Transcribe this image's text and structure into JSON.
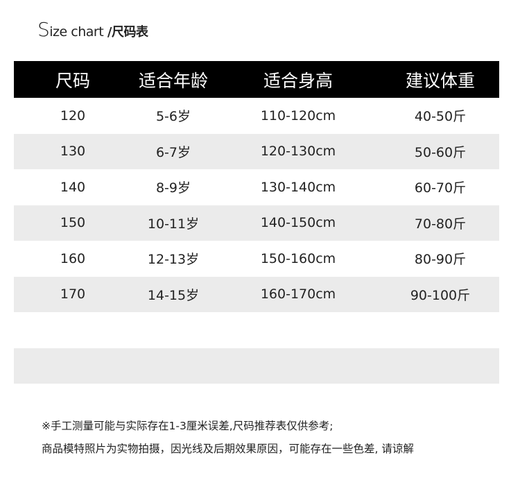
{
  "title": {
    "prefix_big": "S",
    "prefix_rest": "ize chart",
    "cn": " /尺码表"
  },
  "table": {
    "headers": [
      "尺码",
      "适合年龄",
      "适合身高",
      "建议体重"
    ],
    "rows": [
      [
        "120",
        "5-6岁",
        "110-120cm",
        "40-50斤"
      ],
      [
        "130",
        "6-7岁",
        "120-130cm",
        "50-60斤"
      ],
      [
        "140",
        "8-9岁",
        "130-140cm",
        "60-70斤"
      ],
      [
        "150",
        "10-11岁",
        "140-150cm",
        "70-80斤"
      ],
      [
        "160",
        "12-13岁",
        "150-160cm",
        "80-90斤"
      ],
      [
        "170",
        "14-15岁",
        "160-170cm",
        "90-100斤"
      ],
      [
        "",
        "",
        "",
        ""
      ],
      [
        "",
        "",
        "",
        ""
      ]
    ]
  },
  "notes": [
    "※手工测量可能与实际存在1-3厘米误差,尺码推荐表仅供参考;",
    "商品模特照片为实物拍摄，因光线及后期效果原因，可能存在一些色差, 请谅解"
  ],
  "colors": {
    "header_bg": "#000000",
    "alt_row_bg": "#ebebeb"
  }
}
